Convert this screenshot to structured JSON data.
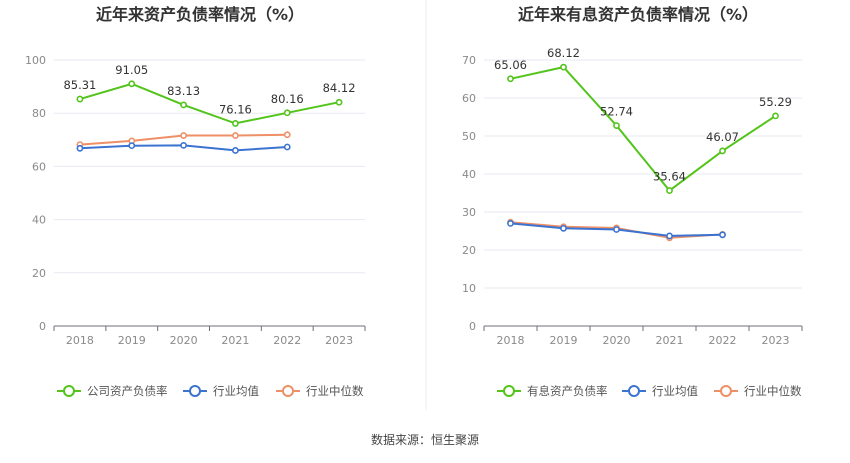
{
  "source_text": "数据来源：恒生聚源",
  "chart_data": [
    {
      "type": "line",
      "title": "近年来资产负债率情况（%）",
      "categories": [
        "2018",
        "2019",
        "2020",
        "2021",
        "2022",
        "2023"
      ],
      "ylim": [
        0,
        100
      ],
      "yticks": [
        0,
        20,
        40,
        60,
        80,
        100
      ],
      "grid": "horizontal",
      "legend_placement": "bottom",
      "series": [
        {
          "name": "公司资产负债率",
          "color": "#52c41a",
          "values": [
            85.31,
            91.05,
            83.13,
            76.16,
            80.16,
            84.12
          ],
          "labels": [
            "85.31",
            "91.05",
            "83.13",
            "76.16",
            "80.16",
            "84.12"
          ]
        },
        {
          "name": "行业均值",
          "color": "#3b73d1",
          "values": [
            66.8,
            67.8,
            67.9,
            66.0,
            67.3,
            null
          ],
          "labels": []
        },
        {
          "name": "行业中位数",
          "color": "#ef8f66",
          "values": [
            68.2,
            69.6,
            71.6,
            71.6,
            71.9,
            null
          ],
          "labels": []
        }
      ]
    },
    {
      "type": "line",
      "title": "近年来有息资产负债率情况（%）",
      "categories": [
        "2018",
        "2019",
        "2020",
        "2021",
        "2022",
        "2023"
      ],
      "ylim": [
        0,
        70
      ],
      "yticks": [
        0,
        10,
        20,
        30,
        40,
        50,
        60,
        70
      ],
      "grid": "horizontal",
      "legend_placement": "bottom",
      "series": [
        {
          "name": "有息资产负债率",
          "color": "#52c41a",
          "values": [
            65.06,
            68.12,
            52.74,
            35.64,
            46.07,
            55.29
          ],
          "labels": [
            "65.06",
            "68.12",
            "52.74",
            "35.64",
            "46.07",
            "55.29"
          ]
        },
        {
          "name": "行业均值",
          "color": "#3b73d1",
          "values": [
            27.0,
            25.7,
            25.4,
            23.7,
            24.0,
            null
          ],
          "labels": []
        },
        {
          "name": "行业中位数",
          "color": "#ef8f66",
          "values": [
            27.3,
            26.1,
            25.8,
            23.2,
            24.1,
            null
          ],
          "labels": []
        }
      ]
    }
  ]
}
